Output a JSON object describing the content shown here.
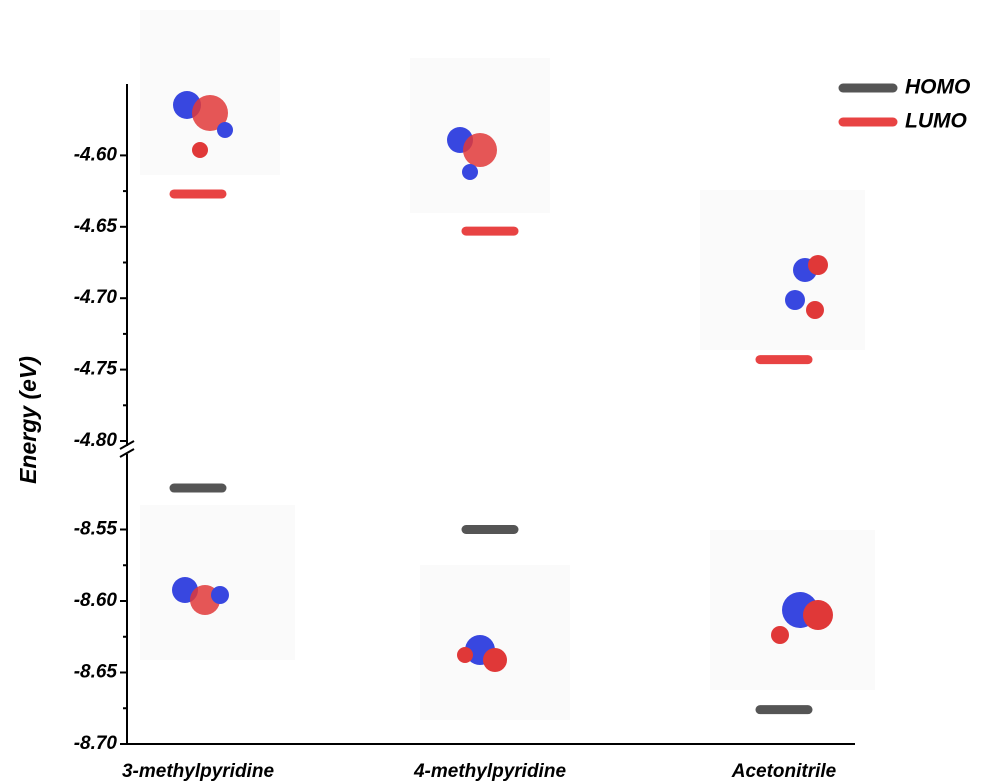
{
  "chart_data": {
    "type": "level",
    "y_label": "Energy (eV)",
    "categories": [
      "3-methylpyridine",
      "4-methylpyridine",
      "Acetonitrile"
    ],
    "y_segments": [
      {
        "ylim": [
          -4.8,
          -4.55
        ],
        "yticks": [
          {
            "value": -4.8,
            "label": "-4.80"
          },
          {
            "value": -4.75,
            "label": "-4.75"
          },
          {
            "value": -4.7,
            "label": "-4.70"
          },
          {
            "value": -4.65,
            "label": "-4.65"
          },
          {
            "value": -4.6,
            "label": "-4.60"
          }
        ]
      },
      {
        "ylim": [
          -8.7,
          -8.5
        ],
        "yticks": [
          {
            "value": -8.7,
            "label": "-8.70"
          },
          {
            "value": -8.65,
            "label": "-8.65"
          },
          {
            "value": -8.6,
            "label": "-8.60"
          },
          {
            "value": -8.55,
            "label": "-8.55"
          }
        ]
      }
    ],
    "series": [
      {
        "name": "HOMO",
        "color": "#555555",
        "segment": 1,
        "values": [
          -8.521,
          -8.55,
          -8.676
        ]
      },
      {
        "name": "LUMO",
        "color": "#e84343",
        "segment": 0,
        "values": [
          -4.627,
          -4.653,
          -4.743
        ]
      }
    ],
    "legend": "top-right"
  }
}
